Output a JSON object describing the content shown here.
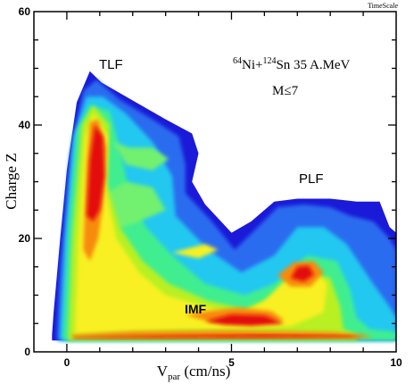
{
  "corner_label": "TimeScale",
  "chart_data": {
    "type": "heatmap",
    "title": "",
    "xlabel_main": "V",
    "xlabel_sub": "par",
    "xlabel_units": " (cm/ns)",
    "ylabel": "Charge Z",
    "xlim": [
      -1,
      10
    ],
    "ylim": [
      0,
      60
    ],
    "xticks": [
      0,
      5,
      10
    ],
    "yticks": [
      0,
      20,
      40,
      60
    ],
    "x_minor_step": 1,
    "y_minor_step": 5,
    "colorscale": [
      "#ffffff",
      "#1a1ad8",
      "#2a6cf0",
      "#22c8f0",
      "#40ee90",
      "#b8f020",
      "#f8f020",
      "#f88a10",
      "#e41010"
    ],
    "annotations": {
      "tlf": "TLF",
      "plf": "PLF",
      "imf": "IMF",
      "reaction_pre1": "64",
      "reaction_mid1": "Ni+",
      "reaction_pre2": "124",
      "reaction_mid2": "Sn 35 A.MeV",
      "multiplicity": "M≤7"
    },
    "regions": [
      {
        "name": "target-like fragment ridge",
        "x_center": 0.8,
        "z_center": 38,
        "intensity": "max"
      },
      {
        "name": "projectile-like fragment blob",
        "x_center": 7.1,
        "z_center": 14,
        "intensity": "high"
      },
      {
        "name": "intermediate mass fragment band",
        "x_center": 5.0,
        "z_center": 6,
        "intensity": "high"
      },
      {
        "name": "light particle floor",
        "x_range": [
          0,
          9
        ],
        "z_center": 3,
        "intensity": "max"
      }
    ]
  }
}
